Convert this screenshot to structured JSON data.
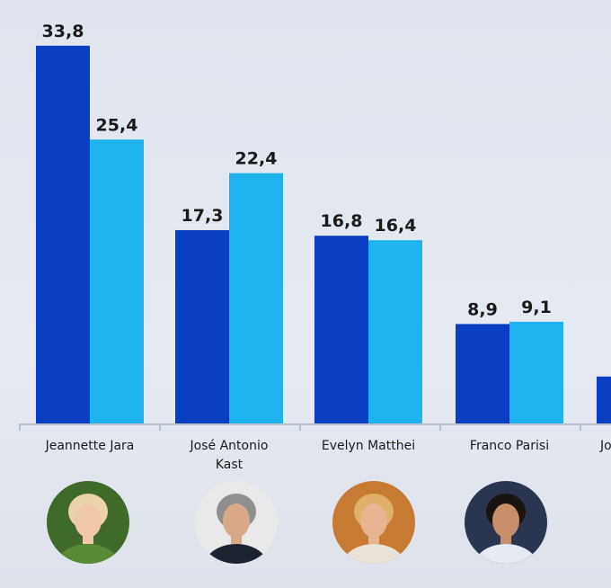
{
  "chart_data": {
    "type": "bar",
    "categories": [
      "Jeannette Jara",
      "José Antonio Kast",
      "Evelyn Matthei",
      "Franco Parisi",
      "Jo"
    ],
    "series": [
      {
        "values": [
          33.8,
          17.3,
          16.8,
          8.9,
          4.2
        ]
      },
      {
        "values": [
          25.4,
          22.4,
          16.4,
          9.1,
          null
        ]
      }
    ],
    "value_labels": [
      [
        "33,8",
        "17,3",
        "16,8",
        "8,9",
        ""
      ],
      [
        "25,4",
        "22,4",
        "16,4",
        "9,1",
        ""
      ]
    ],
    "category_label_lines": [
      [
        "Jeannette Jara"
      ],
      [
        "José Antonio",
        "Kast"
      ],
      [
        "Evelyn Matthei"
      ],
      [
        "Franco Parisi"
      ],
      [
        "Jo"
      ]
    ],
    "ylim": [
      0,
      35
    ],
    "colors": {
      "series1": "#0a3fc4",
      "series2": "#1eb2ef",
      "axis": "#b7c0cf"
    },
    "grid": false,
    "legend": "none"
  },
  "avatars": [
    {
      "name": "candidate-photo-jara",
      "bg": "#3f6a2a",
      "skin": "#f0c8a8",
      "hair": "#e8d4a8",
      "shirt": "#5a8a36"
    },
    {
      "name": "candidate-photo-kast",
      "bg": "#e9e9e9",
      "skin": "#d9a887",
      "hair": "#8f8f8f",
      "shirt": "#1c2230"
    },
    {
      "name": "candidate-photo-matthei",
      "bg": "#c77a32",
      "skin": "#e9b492",
      "hair": "#e0b06a",
      "shirt": "#e9e2d6"
    },
    {
      "name": "candidate-photo-parisi",
      "bg": "#2a3550",
      "skin": "#c98f6a",
      "hair": "#1a1410",
      "shirt": "#e6eaf2"
    }
  ]
}
